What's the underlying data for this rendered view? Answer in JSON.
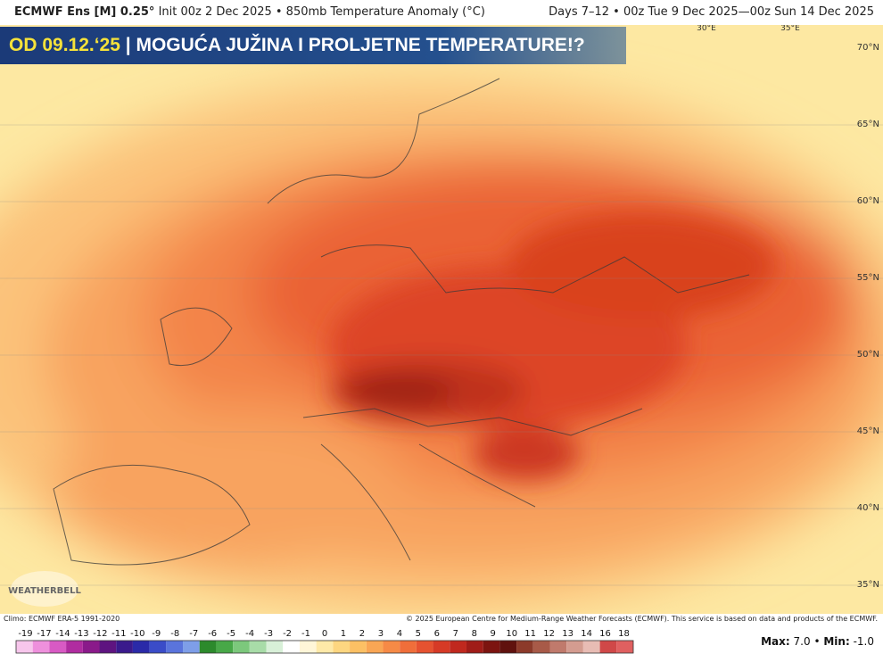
{
  "header": {
    "model": "ECMWF Ens [M] 0.25°",
    "info": "Init 00z 2 Dec 2025 • 850mb Temperature Anomaly (°C)",
    "period": "Days 7–12 • 00z Tue 9 Dec 2025—00z Sun 14 Dec 2025"
  },
  "banner": {
    "date": "OD 09.12.‘25",
    "title": "| MOGUĆA JUŽINA I PROLJETNE TEMPERATURE!?"
  },
  "map": {
    "lon_labels": [
      "30°E",
      "35°E"
    ],
    "lat_labels": [
      "70°N",
      "65°N",
      "60°N",
      "55°N",
      "50°N",
      "45°N",
      "40°N",
      "35°N"
    ],
    "watermark": "WEATHERBELL"
  },
  "footer": {
    "climo": "Climo: ECMWF ERA-5 1991-2020",
    "copyright": "© 2025 European Centre for Medium-Range Weather Forecasts (ECMWF). This service is based on data and products of the ECMWF."
  },
  "colorbar": {
    "labels": [
      "-19",
      "-17",
      "-14",
      "-13",
      "-12",
      "-11",
      "-10",
      "-9",
      "-8",
      "-7",
      "-6",
      "-5",
      "-4",
      "-3",
      "-2",
      "-1",
      "0",
      "1",
      "2",
      "3",
      "4",
      "5",
      "6",
      "7",
      "8",
      "9",
      "10",
      "11",
      "12",
      "13",
      "14",
      "16",
      "18"
    ],
    "colors": [
      "#f7c6ec",
      "#ee90dc",
      "#d85ac4",
      "#b02ca0",
      "#8a1a8a",
      "#5e1480",
      "#3a1a8c",
      "#2a2aa8",
      "#3a4cc8",
      "#5a74dc",
      "#7e9ee8",
      "#2c8a2c",
      "#48a848",
      "#7cc87c",
      "#a8dca8",
      "#d8f0d8",
      "#ffffff",
      "#fff6d8",
      "#fee9a8",
      "#fdd680",
      "#fcc064",
      "#f9a654",
      "#f68a46",
      "#f06e3a",
      "#e65230",
      "#d63a26",
      "#c0281e",
      "#a01c18",
      "#7c1410",
      "#60120e",
      "#8c3a2a",
      "#a85a48",
      "#c07a6c",
      "#d49c90",
      "#e8bcb4",
      "#d04848",
      "#e06060"
    ]
  },
  "stats": {
    "max_label": "Max:",
    "max": "7.0",
    "sep": "•",
    "min_label": "Min:",
    "min": "-1.0"
  }
}
